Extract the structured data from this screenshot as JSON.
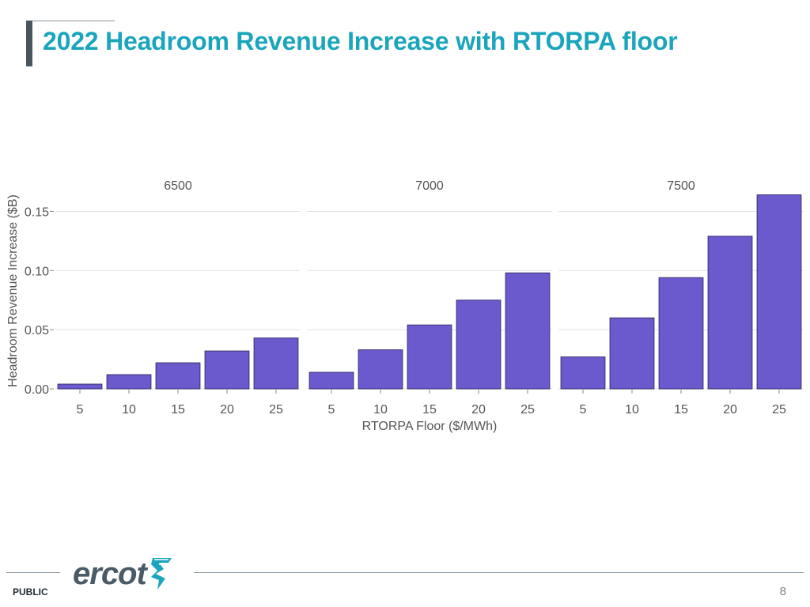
{
  "slide": {
    "title": "2022 Headroom Revenue Increase with RTORPA floor",
    "title_color": "#1aa5bd",
    "footer_label": "PUBLIC",
    "page_number": "8",
    "logo_text": "ercot",
    "logo_color": "#4b5a65",
    "logo_mark_color": "#1aa5bd"
  },
  "chart_data": {
    "type": "bar",
    "title": "",
    "xlabel": "RTORPA Floor ($/MWh)",
    "ylabel": "Headroom Revenue Increase ($B)",
    "ylim": [
      0,
      0.165
    ],
    "yticks": [
      "0.00",
      "0.05",
      "0.10",
      "0.15"
    ],
    "ytick_values": [
      0,
      0.05,
      0.1,
      0.15
    ],
    "categories": [
      "5",
      "10",
      "15",
      "20",
      "25"
    ],
    "facets": [
      {
        "name": "6500",
        "values": [
          0.004,
          0.012,
          0.022,
          0.032,
          0.043
        ]
      },
      {
        "name": "7000",
        "values": [
          0.014,
          0.033,
          0.054,
          0.075,
          0.098
        ]
      },
      {
        "name": "7500",
        "values": [
          0.027,
          0.06,
          0.094,
          0.129,
          0.164
        ]
      }
    ],
    "bar_color": "#6a5acd",
    "grid": true
  }
}
